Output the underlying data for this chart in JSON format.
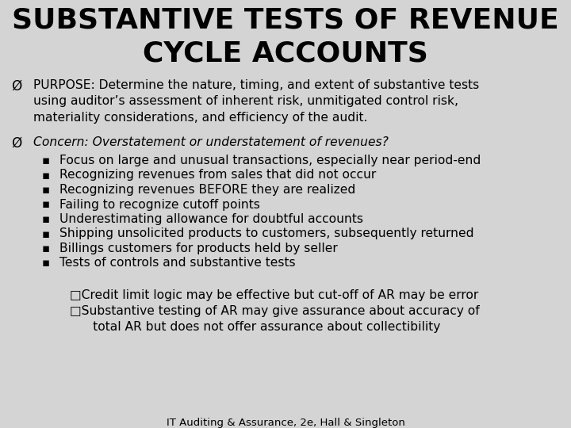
{
  "title_line1": "SUBSTANTIVE TESTS OF REVENUE",
  "title_line2": "CYCLE ACCOUNTS",
  "bg_color": "#d4d4d4",
  "text_color": "#000000",
  "title_fontsize": 26,
  "body_fontsize": 11.2,
  "footer": "IT Auditing & Assurance, 2e, Hall & Singleton",
  "footer_fontsize": 9.5,
  "purpose_bullet": "PURPOSE: Determine the nature, timing, and extent of substantive tests\nusing auditor’s assessment of inherent risk, unmitigated control risk,\nmateriality considerations, and efficiency of the audit.",
  "concern_label": "Concern: Overstatement or understatement of revenues?",
  "sub_bullets": [
    "Focus on large and unusual transactions, especially near period-end",
    "Recognizing revenues from sales that did not occur",
    "Recognizing revenues BEFORE they are realized",
    "Failing to recognize cutoff points",
    "Underestimating allowance for doubtful accounts",
    "Shipping unsolicited products to customers, subsequently returned",
    "Billings customers for products held by seller",
    "Tests of controls and substantive tests"
  ],
  "checkbox_items": [
    "□Credit limit logic may be effective but cut-off of AR may be error",
    "□Substantive testing of AR may give assurance about accuracy of\n      total AR but does not offer assurance about collectibility"
  ],
  "arrow_symbol": "Ø",
  "sq_bullet": "▪"
}
